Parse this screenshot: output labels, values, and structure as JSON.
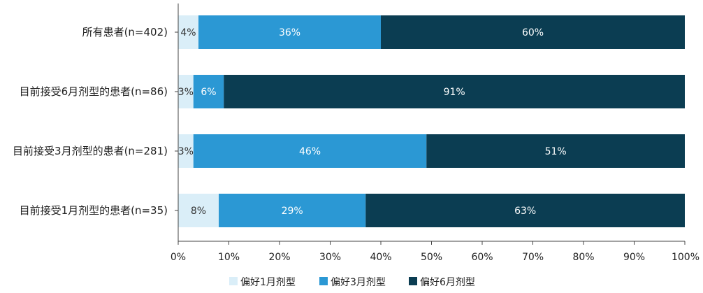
{
  "chart_data": {
    "type": "bar",
    "orientation": "horizontal",
    "stacked": true,
    "categories": [
      "所有患者(n=402)",
      "目前接受6月剂型的患者(n=86)",
      "目前接受3月剂型的患者(n=281)",
      "目前接受1月剂型的患者(n=35)"
    ],
    "series": [
      {
        "name": "偏好1月剂型",
        "values": [
          4,
          3,
          3,
          8
        ],
        "color": "#daeef8",
        "label_color": "#333333"
      },
      {
        "name": "偏好3月剂型",
        "values": [
          36,
          6,
          46,
          29
        ],
        "color": "#2b98d4",
        "label_color": "#ffffff"
      },
      {
        "name": "偏好6月剂型",
        "values": [
          60,
          91,
          51,
          63
        ],
        "color": "#0b3d52",
        "label_color": "#ffffff"
      }
    ],
    "xlim": [
      0,
      100
    ],
    "xticks": [
      "0%",
      "10%",
      "20%",
      "30%",
      "40%",
      "50%",
      "60%",
      "70%",
      "80%",
      "90%",
      "100%"
    ],
    "value_suffix": "%",
    "legend_position": "bottom-center",
    "grid": false
  }
}
